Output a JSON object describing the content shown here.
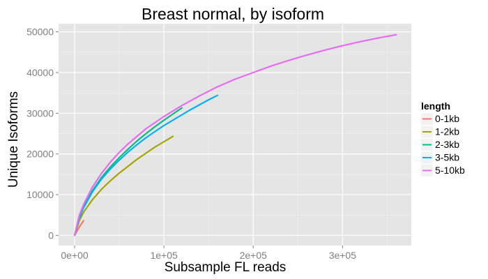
{
  "chart_data": {
    "type": "line",
    "title": "Breast normal, by isoform",
    "xlabel": "Subsample FL reads",
    "ylabel": "Unique Isoforms",
    "xlim": [
      -18000,
      377000
    ],
    "ylim": [
      -2500,
      52000
    ],
    "x_ticks": [
      0,
      100000,
      200000,
      300000
    ],
    "x_tick_labels": [
      "0e+00",
      "1e+05",
      "2e+05",
      "3e+05"
    ],
    "y_ticks": [
      0,
      10000,
      20000,
      30000,
      40000,
      50000
    ],
    "y_tick_labels": [
      "0",
      "10000",
      "20000",
      "30000",
      "40000",
      "50000"
    ],
    "grid": true,
    "legend": {
      "title": "length",
      "position": "right"
    },
    "series": [
      {
        "name": "0-1kb",
        "color": "#F8766D",
        "x": [
          0,
          3000,
          6000,
          9000,
          10000
        ],
        "y": [
          0,
          1200,
          2300,
          3300,
          3600
        ]
      },
      {
        "name": "1-2kb",
        "color": "#A3A500",
        "x": [
          0,
          5000,
          10000,
          20000,
          30000,
          40000,
          50000,
          60000,
          70000,
          80000,
          90000,
          100000,
          110000
        ],
        "y": [
          0,
          3500,
          5700,
          8800,
          11300,
          13400,
          15300,
          17000,
          18700,
          20200,
          21700,
          23000,
          24300
        ]
      },
      {
        "name": "2-3kb",
        "color": "#00BF7D",
        "x": [
          0,
          5000,
          10000,
          20000,
          30000,
          40000,
          50000,
          60000,
          70000,
          80000,
          90000,
          100000,
          110000,
          120000
        ],
        "y": [
          0,
          4300,
          7000,
          11000,
          14200,
          16800,
          19100,
          21200,
          23200,
          25000,
          26700,
          28300,
          29800,
          31300
        ]
      },
      {
        "name": "3-5kb",
        "color": "#00B0F6",
        "x": [
          0,
          5000,
          10000,
          20000,
          30000,
          40000,
          50000,
          60000,
          70000,
          80000,
          90000,
          100000,
          110000,
          120000,
          130000,
          140000,
          150000,
          160000
        ],
        "y": [
          0,
          4200,
          6800,
          10700,
          13800,
          16300,
          18500,
          20500,
          22300,
          24000,
          25500,
          27000,
          28300,
          29600,
          30900,
          32100,
          33300,
          34400
        ]
      },
      {
        "name": "5-10kb",
        "color": "#E76BF3",
        "x": [
          0,
          5000,
          10000,
          20000,
          30000,
          40000,
          50000,
          60000,
          80000,
          100000,
          120000,
          140000,
          160000,
          180000,
          200000,
          220000,
          240000,
          260000,
          280000,
          300000,
          320000,
          340000,
          360000
        ],
        "y": [
          0,
          4800,
          7600,
          11900,
          15200,
          18000,
          20400,
          22500,
          26200,
          29200,
          31900,
          34300,
          36500,
          38400,
          40000,
          41600,
          43000,
          44300,
          45500,
          46600,
          47600,
          48500,
          49300
        ]
      }
    ]
  }
}
